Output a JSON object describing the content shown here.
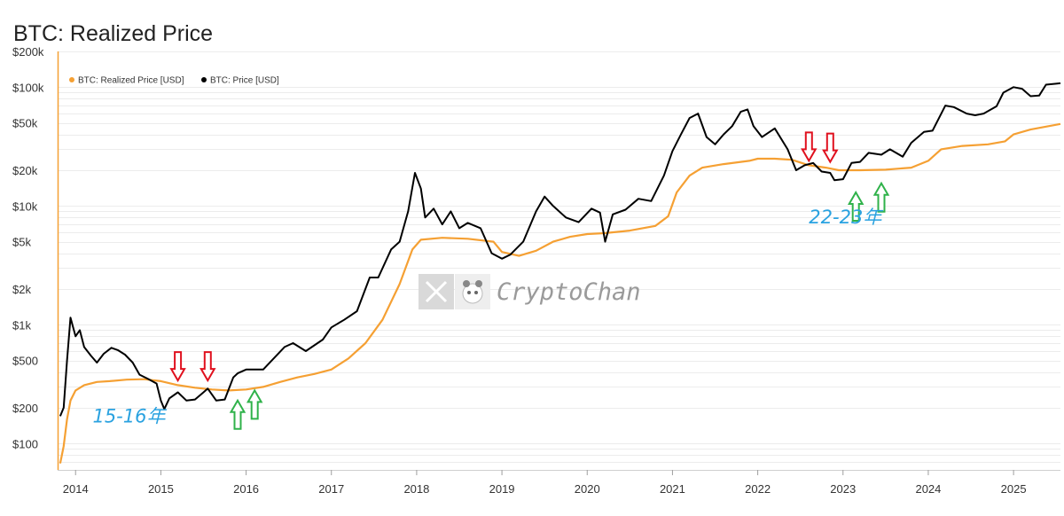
{
  "chart_data": {
    "type": "line",
    "title": "BTC: Realized Price",
    "y_scale": "log",
    "ylim": [
      60,
      200000
    ],
    "xlim": [
      2013.8,
      2025.55
    ],
    "y_ticks": [
      {
        "v": 100,
        "label": "$100"
      },
      {
        "v": 200,
        "label": "$200"
      },
      {
        "v": 500,
        "label": "$500"
      },
      {
        "v": 1000,
        "label": "$1k"
      },
      {
        "v": 2000,
        "label": "$2k"
      },
      {
        "v": 5000,
        "label": "$5k"
      },
      {
        "v": 10000,
        "label": "$10k"
      },
      {
        "v": 20000,
        "label": "$20k"
      },
      {
        "v": 50000,
        "label": "$50k"
      },
      {
        "v": 100000,
        "label": "$100k"
      },
      {
        "v": 200000,
        "label": "$200k"
      }
    ],
    "x_ticks": [
      {
        "v": 2014,
        "label": "2014"
      },
      {
        "v": 2015,
        "label": "2015"
      },
      {
        "v": 2016,
        "label": "2016"
      },
      {
        "v": 2017,
        "label": "2017"
      },
      {
        "v": 2018,
        "label": "2018"
      },
      {
        "v": 2019,
        "label": "2019"
      },
      {
        "v": 2020,
        "label": "2020"
      },
      {
        "v": 2021,
        "label": "2021"
      },
      {
        "v": 2022,
        "label": "2022"
      },
      {
        "v": 2023,
        "label": "2023"
      },
      {
        "v": 2024,
        "label": "2024"
      },
      {
        "v": 2025,
        "label": "2025"
      }
    ],
    "legend": {
      "placement": "top-left"
    },
    "grid": true,
    "series": [
      {
        "name": "BTC: Realized Price [USD]",
        "color": "#f5a033",
        "points": [
          [
            2013.82,
            68
          ],
          [
            2013.86,
            95
          ],
          [
            2013.9,
            160
          ],
          [
            2013.94,
            230
          ],
          [
            2014.0,
            280
          ],
          [
            2014.1,
            310
          ],
          [
            2014.25,
            330
          ],
          [
            2014.4,
            335
          ],
          [
            2014.6,
            345
          ],
          [
            2014.8,
            348
          ],
          [
            2015.0,
            335
          ],
          [
            2015.2,
            310
          ],
          [
            2015.4,
            295
          ],
          [
            2015.6,
            285
          ],
          [
            2015.8,
            280
          ],
          [
            2016.0,
            285
          ],
          [
            2016.2,
            300
          ],
          [
            2016.4,
            330
          ],
          [
            2016.6,
            360
          ],
          [
            2016.8,
            385
          ],
          [
            2017.0,
            420
          ],
          [
            2017.2,
            520
          ],
          [
            2017.4,
            700
          ],
          [
            2017.6,
            1100
          ],
          [
            2017.8,
            2200
          ],
          [
            2017.95,
            4300
          ],
          [
            2018.05,
            5200
          ],
          [
            2018.3,
            5400
          ],
          [
            2018.6,
            5300
          ],
          [
            2018.9,
            5000
          ],
          [
            2019.0,
            4100
          ],
          [
            2019.2,
            3800
          ],
          [
            2019.4,
            4200
          ],
          [
            2019.6,
            5000
          ],
          [
            2019.8,
            5500
          ],
          [
            2020.0,
            5800
          ],
          [
            2020.2,
            5900
          ],
          [
            2020.5,
            6200
          ],
          [
            2020.8,
            6800
          ],
          [
            2020.95,
            8200
          ],
          [
            2021.05,
            13000
          ],
          [
            2021.2,
            18000
          ],
          [
            2021.35,
            21000
          ],
          [
            2021.6,
            22500
          ],
          [
            2021.9,
            24000
          ],
          [
            2022.0,
            25000
          ],
          [
            2022.2,
            25000
          ],
          [
            2022.4,
            24500
          ],
          [
            2022.6,
            22000
          ],
          [
            2022.8,
            21000
          ],
          [
            2022.95,
            20000
          ],
          [
            2023.2,
            20000
          ],
          [
            2023.5,
            20200
          ],
          [
            2023.8,
            21000
          ],
          [
            2024.0,
            24000
          ],
          [
            2024.15,
            30000
          ],
          [
            2024.4,
            32000
          ],
          [
            2024.7,
            33000
          ],
          [
            2024.9,
            35000
          ],
          [
            2025.0,
            40000
          ],
          [
            2025.2,
            44000
          ],
          [
            2025.55,
            49000
          ]
        ]
      },
      {
        "name": "BTC: Price [USD]",
        "color": "#000000",
        "points": [
          [
            2013.82,
            170
          ],
          [
            2013.86,
            200
          ],
          [
            2013.9,
            500
          ],
          [
            2013.94,
            1150
          ],
          [
            2014.0,
            800
          ],
          [
            2014.05,
            900
          ],
          [
            2014.1,
            650
          ],
          [
            2014.18,
            550
          ],
          [
            2014.25,
            480
          ],
          [
            2014.33,
            570
          ],
          [
            2014.42,
            640
          ],
          [
            2014.5,
            610
          ],
          [
            2014.58,
            560
          ],
          [
            2014.67,
            480
          ],
          [
            2014.75,
            380
          ],
          [
            2014.85,
            350
          ],
          [
            2014.95,
            320
          ],
          [
            2015.0,
            230
          ],
          [
            2015.04,
            195
          ],
          [
            2015.1,
            240
          ],
          [
            2015.2,
            270
          ],
          [
            2015.3,
            230
          ],
          [
            2015.4,
            235
          ],
          [
            2015.5,
            270
          ],
          [
            2015.55,
            290
          ],
          [
            2015.65,
            230
          ],
          [
            2015.75,
            235
          ],
          [
            2015.85,
            360
          ],
          [
            2015.9,
            390
          ],
          [
            2016.0,
            420
          ],
          [
            2016.2,
            420
          ],
          [
            2016.45,
            650
          ],
          [
            2016.55,
            700
          ],
          [
            2016.7,
            600
          ],
          [
            2016.9,
            750
          ],
          [
            2017.0,
            950
          ],
          [
            2017.15,
            1100
          ],
          [
            2017.3,
            1300
          ],
          [
            2017.45,
            2500
          ],
          [
            2017.55,
            2500
          ],
          [
            2017.7,
            4300
          ],
          [
            2017.8,
            5000
          ],
          [
            2017.9,
            9000
          ],
          [
            2017.98,
            19000
          ],
          [
            2018.05,
            14000
          ],
          [
            2018.1,
            8000
          ],
          [
            2018.2,
            9500
          ],
          [
            2018.3,
            7000
          ],
          [
            2018.4,
            9000
          ],
          [
            2018.5,
            6500
          ],
          [
            2018.6,
            7200
          ],
          [
            2018.75,
            6500
          ],
          [
            2018.88,
            4000
          ],
          [
            2019.0,
            3600
          ],
          [
            2019.1,
            3900
          ],
          [
            2019.25,
            5000
          ],
          [
            2019.4,
            9000
          ],
          [
            2019.5,
            12000
          ],
          [
            2019.6,
            10000
          ],
          [
            2019.75,
            8000
          ],
          [
            2019.9,
            7300
          ],
          [
            2020.05,
            9500
          ],
          [
            2020.15,
            8800
          ],
          [
            2020.21,
            5000
          ],
          [
            2020.3,
            8500
          ],
          [
            2020.45,
            9300
          ],
          [
            2020.6,
            11500
          ],
          [
            2020.75,
            11000
          ],
          [
            2020.9,
            18000
          ],
          [
            2021.0,
            29000
          ],
          [
            2021.1,
            40000
          ],
          [
            2021.2,
            55000
          ],
          [
            2021.3,
            60000
          ],
          [
            2021.4,
            38000
          ],
          [
            2021.5,
            33000
          ],
          [
            2021.6,
            40000
          ],
          [
            2021.7,
            47000
          ],
          [
            2021.8,
            62000
          ],
          [
            2021.88,
            65000
          ],
          [
            2021.95,
            47000
          ],
          [
            2022.05,
            38000
          ],
          [
            2022.2,
            45000
          ],
          [
            2022.35,
            30000
          ],
          [
            2022.45,
            20000
          ],
          [
            2022.55,
            22000
          ],
          [
            2022.65,
            23000
          ],
          [
            2022.75,
            19500
          ],
          [
            2022.85,
            19000
          ],
          [
            2022.9,
            16500
          ],
          [
            2023.0,
            16800
          ],
          [
            2023.1,
            23000
          ],
          [
            2023.2,
            23500
          ],
          [
            2023.3,
            28000
          ],
          [
            2023.45,
            27000
          ],
          [
            2023.55,
            30000
          ],
          [
            2023.7,
            26000
          ],
          [
            2023.8,
            34000
          ],
          [
            2023.95,
            42000
          ],
          [
            2024.05,
            43000
          ],
          [
            2024.2,
            70000
          ],
          [
            2024.3,
            68000
          ],
          [
            2024.45,
            60000
          ],
          [
            2024.55,
            58000
          ],
          [
            2024.65,
            60000
          ],
          [
            2024.8,
            69000
          ],
          [
            2024.88,
            90000
          ],
          [
            2025.0,
            100000
          ],
          [
            2025.1,
            97000
          ],
          [
            2025.2,
            84000
          ],
          [
            2025.3,
            85000
          ],
          [
            2025.38,
            105000
          ],
          [
            2025.5,
            107000
          ],
          [
            2025.55,
            108000
          ]
        ]
      }
    ],
    "annotations": [
      {
        "label": "15-16年",
        "x": 2014.2,
        "y": 150
      },
      {
        "label": "22-23年",
        "x": 2022.6,
        "y": 7100
      }
    ],
    "arrows": [
      {
        "direction": "down",
        "color": "#e0101e",
        "x": 2015.2,
        "y": 340
      },
      {
        "direction": "down",
        "color": "#e0101e",
        "x": 2015.55,
        "y": 340
      },
      {
        "direction": "up",
        "color": "#2fb24a",
        "x": 2015.9,
        "y": 230
      },
      {
        "direction": "up",
        "color": "#2fb24a",
        "x": 2016.1,
        "y": 280
      },
      {
        "direction": "down",
        "color": "#e0101e",
        "x": 2022.6,
        "y": 24000
      },
      {
        "direction": "down",
        "color": "#e0101e",
        "x": 2022.85,
        "y": 23500
      },
      {
        "direction": "up",
        "color": "#2fb24a",
        "x": 2023.15,
        "y": 13000
      },
      {
        "direction": "up",
        "color": "#2fb24a",
        "x": 2023.45,
        "y": 15500
      }
    ]
  },
  "watermark": {
    "brand": "CryptoChan",
    "icon": "x-logo-icon",
    "avatar": "panda-avatar-icon"
  }
}
